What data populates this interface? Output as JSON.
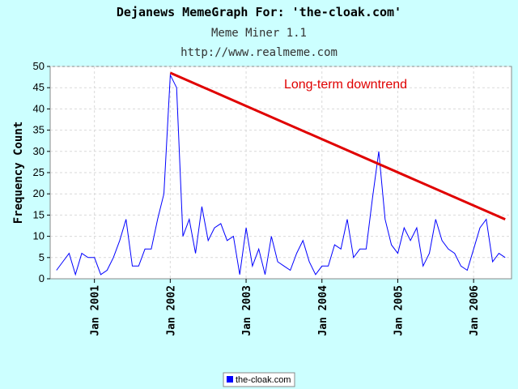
{
  "chart_data": {
    "type": "line",
    "title": "Dejanews MemeGraph For: 'the-cloak.com'",
    "subtitle": "Meme Miner 1.1",
    "subtitle2": "http://www.realmeme.com",
    "xlabel": "",
    "ylabel": "Frequency Count",
    "xlim": [
      "2000-06",
      "2006-07"
    ],
    "ylim": [
      0,
      50
    ],
    "yticks": [
      0,
      5,
      10,
      15,
      20,
      25,
      30,
      35,
      40,
      45,
      50
    ],
    "xticks": [
      {
        "date": "2001-01",
        "label": "Jan 2001"
      },
      {
        "date": "2002-01",
        "label": "Jan 2002"
      },
      {
        "date": "2003-01",
        "label": "Jan 2003"
      },
      {
        "date": "2004-01",
        "label": "Jan 2004"
      },
      {
        "date": "2005-01",
        "label": "Jan 2005"
      },
      {
        "date": "2006-01",
        "label": "Jan 2006"
      }
    ],
    "grid": true,
    "legend_position": "bottom-center",
    "series": [
      {
        "name": "the-cloak.com",
        "color": "#0000ff",
        "x": [
          "2000-07",
          "2000-08",
          "2000-09",
          "2000-10",
          "2000-11",
          "2000-12",
          "2001-01",
          "2001-02",
          "2001-03",
          "2001-04",
          "2001-05",
          "2001-06",
          "2001-07",
          "2001-08",
          "2001-09",
          "2001-10",
          "2001-11",
          "2001-12",
          "2002-01",
          "2002-02",
          "2002-03",
          "2002-04",
          "2002-05",
          "2002-06",
          "2002-07",
          "2002-08",
          "2002-09",
          "2002-10",
          "2002-11",
          "2002-12",
          "2003-01",
          "2003-02",
          "2003-03",
          "2003-04",
          "2003-05",
          "2003-06",
          "2003-07",
          "2003-08",
          "2003-09",
          "2003-10",
          "2003-11",
          "2003-12",
          "2004-01",
          "2004-02",
          "2004-03",
          "2004-04",
          "2004-05",
          "2004-06",
          "2004-07",
          "2004-08",
          "2004-09",
          "2004-10",
          "2004-11",
          "2004-12",
          "2005-01",
          "2005-02",
          "2005-03",
          "2005-04",
          "2005-05",
          "2005-06",
          "2005-07",
          "2005-08",
          "2005-09",
          "2005-10",
          "2005-11",
          "2005-12",
          "2006-01",
          "2006-02",
          "2006-03",
          "2006-04",
          "2006-05",
          "2006-06"
        ],
        "values": [
          2,
          4,
          6,
          1,
          6,
          5,
          5,
          1,
          2,
          5,
          9,
          14,
          3,
          3,
          7,
          7,
          14,
          20,
          48,
          45,
          10,
          14,
          6,
          17,
          9,
          12,
          13,
          9,
          10,
          1,
          12,
          3,
          7,
          1,
          10,
          4,
          3,
          2,
          6,
          9,
          4,
          1,
          3,
          3,
          8,
          7,
          14,
          5,
          7,
          7,
          19,
          30,
          14,
          8,
          6,
          12,
          9,
          12,
          3,
          6,
          14,
          9,
          7,
          6,
          3,
          2,
          7,
          12,
          14,
          4,
          6,
          5
        ]
      }
    ],
    "annotations": [
      {
        "text": "Long-term downtrend",
        "color": "#e00000"
      }
    ],
    "trendline": {
      "x0": "2002-01",
      "y0": 48.5,
      "x1": "2006-06",
      "y1": 14,
      "color": "#e00000"
    }
  }
}
